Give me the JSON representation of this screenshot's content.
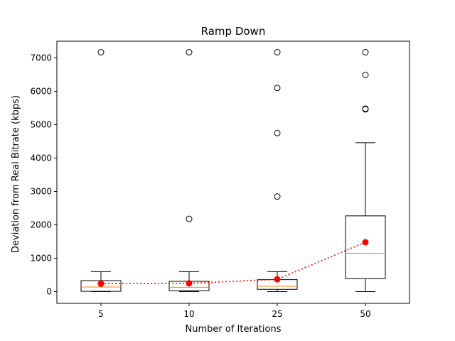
{
  "chart_data": {
    "type": "box",
    "title": "Ramp Down",
    "xlabel": "Number of Iterations",
    "ylabel": "Deviation from Real Bitrate (kbps)",
    "categories": [
      "5",
      "10",
      "25",
      "50"
    ],
    "ylim": [
      -350,
      7500
    ],
    "yticks": [
      0,
      1000,
      2000,
      3000,
      4000,
      5000,
      6000,
      7000
    ],
    "grid": false,
    "boxes": [
      {
        "category": "5",
        "whisker_low": 0,
        "q1": 10,
        "median": 140,
        "q3": 330,
        "whisker_high": 600,
        "outliers": [
          7170
        ]
      },
      {
        "category": "10",
        "whisker_low": 0,
        "q1": 30,
        "median": 130,
        "q3": 310,
        "whisker_high": 600,
        "outliers": [
          2180,
          7170
        ]
      },
      {
        "category": "25",
        "whisker_low": 0,
        "q1": 70,
        "median": 160,
        "q3": 360,
        "whisker_high": 600,
        "outliers": [
          2850,
          4750,
          6100,
          7170
        ]
      },
      {
        "category": "50",
        "whisker_low": 0,
        "q1": 390,
        "median": 1150,
        "q3": 2270,
        "whisker_high": 4460,
        "outliers": [
          5460,
          5480,
          6490,
          7170
        ]
      }
    ],
    "means": [
      240,
      250,
      370,
      1480
    ],
    "colors": {
      "box": "#000000",
      "median": "#ff7f0e",
      "mean": "#ff0000",
      "outlier": "#000000"
    }
  }
}
